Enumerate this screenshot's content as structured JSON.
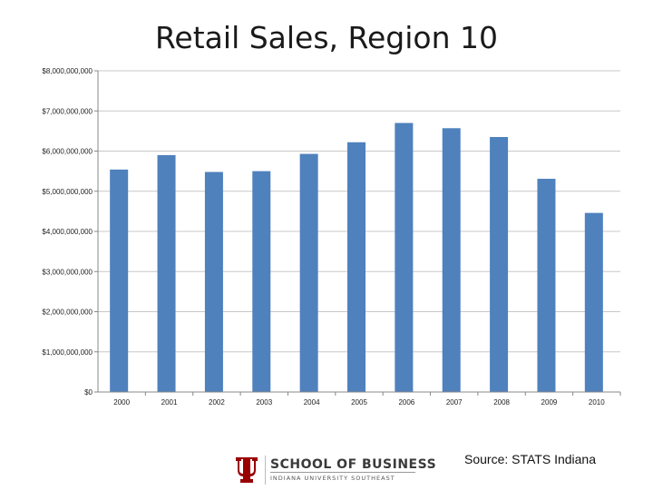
{
  "chart_data": {
    "type": "bar",
    "title": "Retail Sales, Region 10",
    "xlabel": "",
    "ylabel": "",
    "categories": [
      "2000",
      "2001",
      "2002",
      "2003",
      "2004",
      "2005",
      "2006",
      "2007",
      "2008",
      "2009",
      "2010"
    ],
    "values": [
      5540000000,
      5900000000,
      5480000000,
      5500000000,
      5930000000,
      6220000000,
      6700000000,
      6570000000,
      6350000000,
      5310000000,
      4460000000
    ],
    "ylim": [
      0,
      8000000000
    ],
    "yticks": [
      0,
      1000000000,
      2000000000,
      3000000000,
      4000000000,
      5000000000,
      6000000000,
      7000000000,
      8000000000
    ],
    "ytick_labels": [
      "$0",
      "$1,000,000,000",
      "$2,000,000,000",
      "$3,000,000,000",
      "$4,000,000,000",
      "$5,000,000,000",
      "$6,000,000,000",
      "$7,000,000,000",
      "$8,000,000,000"
    ],
    "bar_color": "#4f81bd",
    "grid": "horizontal",
    "legend": "none"
  },
  "footer": {
    "source": "Source:  STATS Indiana",
    "logo_text": "SCHOOL OF BUSINESS",
    "logo_subtext": "INDIANA UNIVERSITY SOUTHEAST",
    "logo_color": "#990000"
  }
}
